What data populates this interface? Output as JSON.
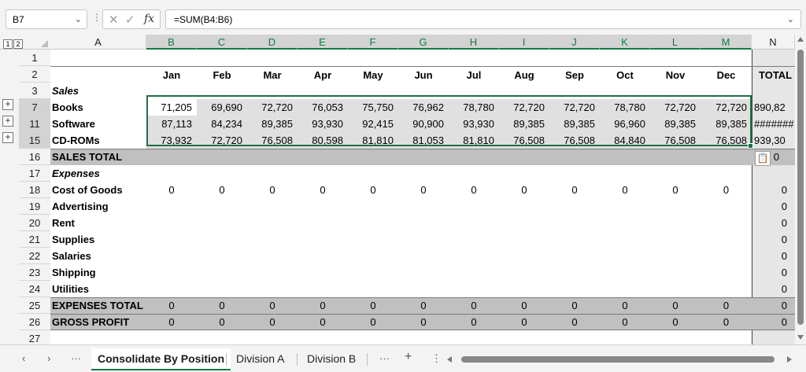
{
  "name_box": {
    "value": "B7"
  },
  "formula_bar": {
    "cancel_icon": "✕",
    "enter_icon": "✓",
    "fx_label": "fx",
    "formula": "=SUM(B4:B6)"
  },
  "outline_levels": [
    "1",
    "2"
  ],
  "columns": [
    "A",
    "B",
    "C",
    "D",
    "E",
    "F",
    "G",
    "H",
    "I",
    "J",
    "K",
    "L",
    "M",
    "N"
  ],
  "rows": {
    "r1": {
      "num": "1"
    },
    "r2": {
      "num": "2",
      "months": [
        "Jan",
        "Feb",
        "Mar",
        "Apr",
        "May",
        "Jun",
        "Jul",
        "Aug",
        "Sep",
        "Oct",
        "Nov",
        "Dec"
      ],
      "total": "TOTAL"
    },
    "r3": {
      "num": "3",
      "label": "Sales"
    },
    "r7": {
      "num": "7",
      "label": "Books",
      "values": [
        "71,205",
        "69,690",
        "72,720",
        "76,053",
        "75,750",
        "76,962",
        "78,780",
        "72,720",
        "72,720",
        "78,780",
        "72,720",
        "72,720"
      ],
      "total": "890,82"
    },
    "r11": {
      "num": "11",
      "label": "Software",
      "values": [
        "87,113",
        "84,234",
        "89,385",
        "93,930",
        "92,415",
        "90,900",
        "93,930",
        "89,385",
        "89,385",
        "96,960",
        "89,385",
        "89,385"
      ],
      "total": "#######"
    },
    "r15": {
      "num": "15",
      "label": "CD-ROMs",
      "values": [
        "73,932",
        "72,720",
        "76,508",
        "80,598",
        "81,810",
        "81,053",
        "81,810",
        "76,508",
        "76,508",
        "84,840",
        "76,508",
        "76,508"
      ],
      "total": "939,30"
    },
    "r16": {
      "num": "16",
      "label": "SALES TOTAL",
      "total": "0"
    },
    "r17": {
      "num": "17",
      "label": "Expenses"
    },
    "r18": {
      "num": "18",
      "label": "Cost of Goods",
      "values": [
        "0",
        "0",
        "0",
        "0",
        "0",
        "0",
        "0",
        "0",
        "0",
        "0",
        "0",
        "0"
      ],
      "total": "0"
    },
    "r19": {
      "num": "19",
      "label": "Advertising",
      "total": "0"
    },
    "r20": {
      "num": "20",
      "label": "Rent",
      "total": "0"
    },
    "r21": {
      "num": "21",
      "label": "Supplies",
      "total": "0"
    },
    "r22": {
      "num": "22",
      "label": "Salaries",
      "total": "0"
    },
    "r23": {
      "num": "23",
      "label": "Shipping",
      "total": "0"
    },
    "r24": {
      "num": "24",
      "label": "Utilities",
      "total": "0"
    },
    "r25": {
      "num": "25",
      "label": "EXPENSES TOTAL",
      "values": [
        "0",
        "0",
        "0",
        "0",
        "0",
        "0",
        "0",
        "0",
        "0",
        "0",
        "0",
        "0"
      ],
      "total": "0"
    },
    "r26": {
      "num": "26",
      "label": "GROSS PROFIT",
      "values": [
        "0",
        "0",
        "0",
        "0",
        "0",
        "0",
        "0",
        "0",
        "0",
        "0",
        "0",
        "0"
      ],
      "total": "0"
    },
    "r27": {
      "num": "27"
    }
  },
  "sheet_tabs": {
    "more_left": "···",
    "tabs": [
      "Consolidate By Position",
      "Division A",
      "Division B"
    ],
    "more_right": "···",
    "add": "+"
  },
  "selection": {
    "range": "B7:M15",
    "quick_analysis_icon": "quick-analysis-icon"
  }
}
